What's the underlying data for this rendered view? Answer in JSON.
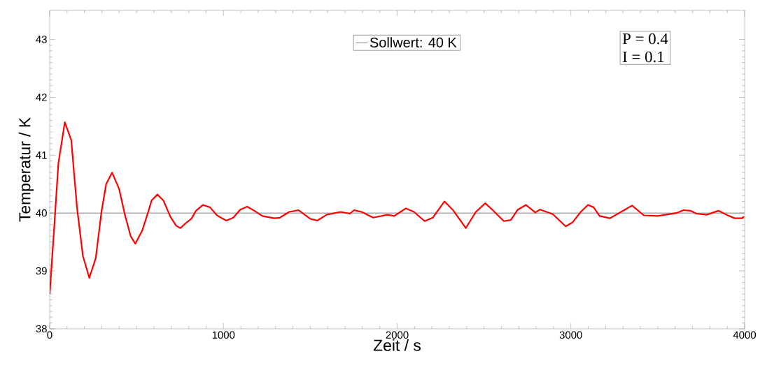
{
  "chart_data": {
    "type": "line",
    "xlabel": "Zeit / s",
    "ylabel": "Temperatur / K",
    "xlim": [
      0,
      4000
    ],
    "ylim": [
      38,
      43.5
    ],
    "xticks": [
      0,
      1000,
      2000,
      3000,
      4000
    ],
    "yticks": [
      38,
      39,
      40,
      41,
      42,
      43
    ],
    "legend": "top",
    "grid": false,
    "marker": "none",
    "line_style": "solid",
    "ref_lines": [
      {
        "axis": "y",
        "value": 40,
        "label": "Sollwert: 40 K",
        "color": "#808080"
      }
    ],
    "annotations": [
      "P  = 0.4",
      "I  = 0.1"
    ],
    "series": [
      {
        "color": "#ff0000",
        "x": [
          0,
          23,
          50,
          87,
          124,
          157,
          191,
          228,
          265,
          298,
          325,
          359,
          399,
          432,
          466,
          493,
          533,
          567,
          587,
          620,
          654,
          694,
          728,
          752,
          781,
          815,
          842,
          882,
          922,
          963,
          1016,
          1057,
          1097,
          1137,
          1178,
          1224,
          1292,
          1325,
          1379,
          1433,
          1500,
          1540,
          1594,
          1674,
          1728,
          1752,
          1795,
          1862,
          1943,
          1983,
          2050,
          2097,
          2158,
          2205,
          2272,
          2319,
          2395,
          2453,
          2507,
          2547,
          2614,
          2654,
          2695,
          2742,
          2795,
          2822,
          2896,
          2970,
          3010,
          3057,
          3098,
          3131,
          3165,
          3225,
          3312,
          3352,
          3420,
          3500,
          3608,
          3648,
          3688,
          3722,
          3782,
          3849,
          3903,
          3943,
          3984,
          3997
        ],
        "values": [
          38.6,
          39.62,
          40.86,
          41.57,
          41.26,
          40.1,
          39.26,
          38.88,
          39.22,
          40.02,
          40.5,
          40.7,
          40.42,
          39.98,
          39.6,
          39.47,
          39.7,
          40.02,
          40.22,
          40.32,
          40.22,
          39.94,
          39.78,
          39.74,
          39.82,
          39.9,
          40.04,
          40.14,
          40.1,
          39.96,
          39.87,
          39.92,
          40.06,
          40.11,
          40.04,
          39.95,
          39.91,
          39.92,
          40.02,
          40.05,
          39.9,
          39.87,
          39.97,
          40.02,
          39.99,
          40.05,
          40.02,
          39.92,
          39.97,
          39.95,
          40.08,
          40.02,
          39.86,
          39.92,
          40.2,
          40.06,
          39.74,
          40.02,
          40.17,
          40.06,
          39.86,
          39.88,
          40.06,
          40.14,
          40.01,
          40.06,
          39.98,
          39.77,
          39.84,
          40.02,
          40.14,
          40.1,
          39.95,
          39.91,
          40.06,
          40.13,
          39.96,
          39.95,
          40.0,
          40.05,
          40.04,
          39.99,
          39.97,
          40.04,
          39.96,
          39.91,
          39.91,
          39.94
        ]
      }
    ]
  }
}
